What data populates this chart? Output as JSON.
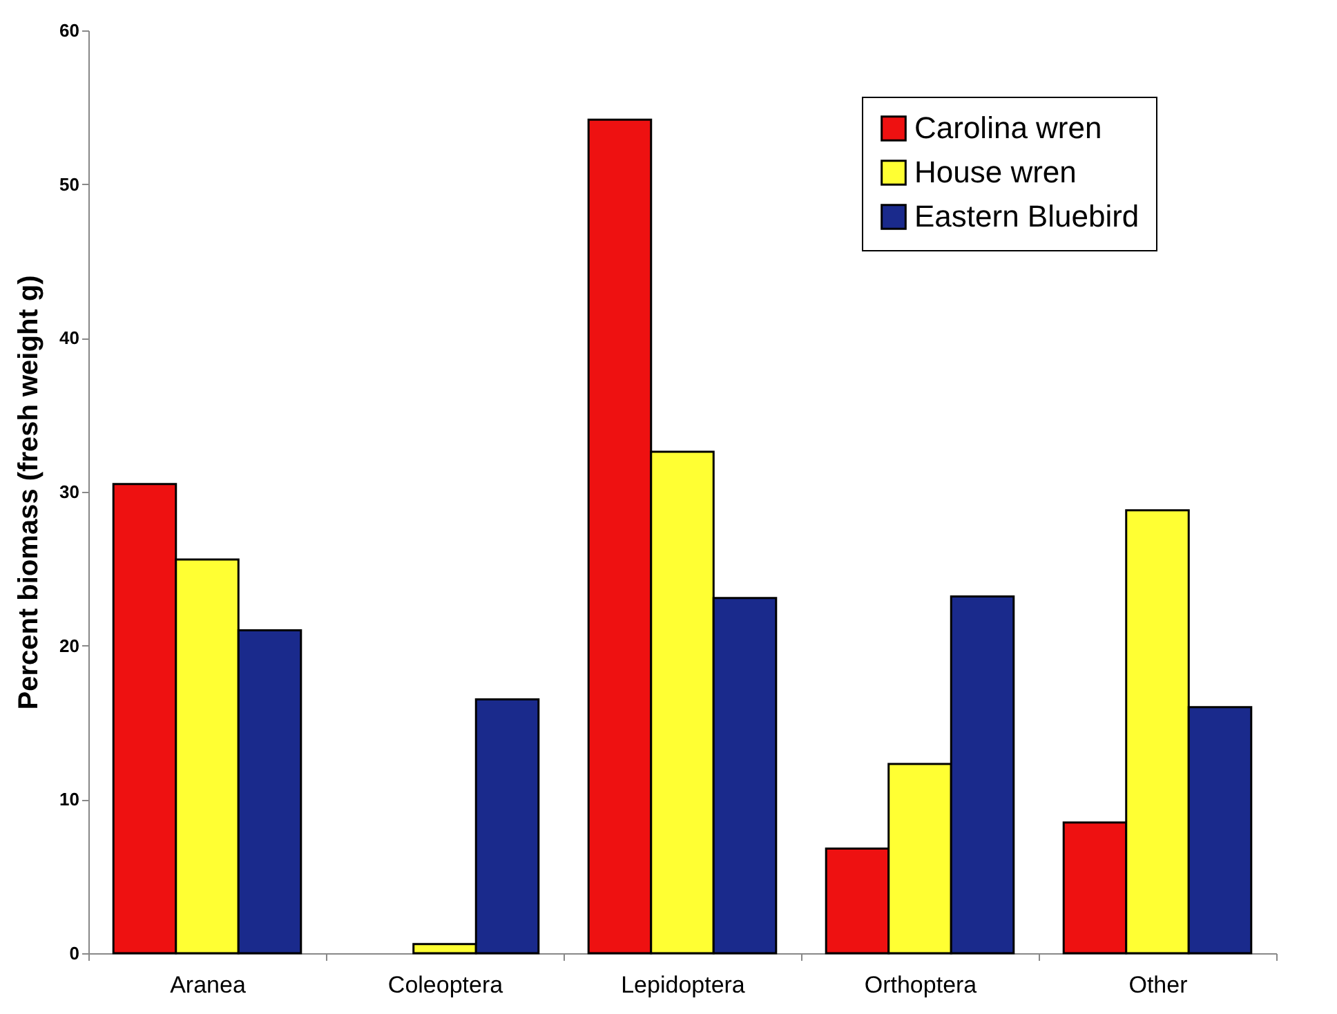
{
  "chart_data": {
    "type": "bar",
    "ylabel": "Percent biomass (fresh weight g)",
    "categories": [
      "Aranea",
      "Coleoptera",
      "Lepidoptera",
      "Orthoptera",
      "Other"
    ],
    "series": [
      {
        "name": "Carolina wren",
        "color": "#ee1111",
        "values": [
          30.5,
          null,
          54.2,
          6.8,
          8.5
        ]
      },
      {
        "name": "House wren",
        "color": "#ffff33",
        "values": [
          25.6,
          0.6,
          32.6,
          12.3,
          28.8
        ]
      },
      {
        "name": "Eastern Bluebird",
        "color": "#1a2a8c",
        "values": [
          21.0,
          16.5,
          23.1,
          23.2,
          16.0
        ]
      }
    ],
    "ylim": [
      0,
      60
    ],
    "yticks": [
      0,
      10,
      20,
      30,
      40,
      50,
      60
    ],
    "grid": false,
    "legend": "top right"
  }
}
